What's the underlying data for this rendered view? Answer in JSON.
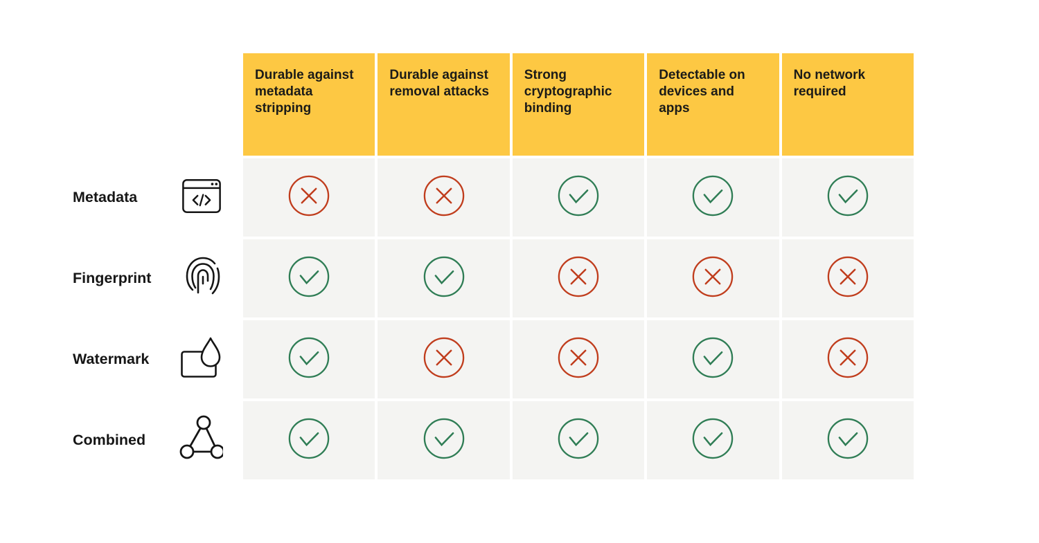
{
  "table": {
    "columns": [
      {
        "label": "Durable against metadata stripping"
      },
      {
        "label": "Durable against removal attacks"
      },
      {
        "label": "Strong cryptographic binding"
      },
      {
        "label": "Detectable on devices and apps"
      },
      {
        "label": "No network required"
      }
    ],
    "rows": [
      {
        "label": "Metadata",
        "icon": "browser-code-icon",
        "values": [
          "no",
          "no",
          "yes",
          "yes",
          "yes"
        ]
      },
      {
        "label": "Fingerprint",
        "icon": "fingerprint-icon",
        "values": [
          "yes",
          "yes",
          "no",
          "no",
          "no"
        ]
      },
      {
        "label": "Watermark",
        "icon": "watermark-droplet-icon",
        "values": [
          "yes",
          "no",
          "no",
          "yes",
          "no"
        ]
      },
      {
        "label": "Combined",
        "icon": "network-triangle-icon",
        "values": [
          "yes",
          "yes",
          "yes",
          "yes",
          "yes"
        ]
      }
    ]
  },
  "marks": {
    "yes": {
      "icon": "check-icon",
      "color": "#2F7D55"
    },
    "no": {
      "icon": "cross-icon",
      "color": "#C03D1D"
    }
  },
  "colors": {
    "header_bg": "#FDC843",
    "cell_bg": "#F4F4F2",
    "check_green": "#2F7D55",
    "cross_red": "#C03D1D",
    "icon_stroke": "#151515",
    "page_bg": "#FFFFFF"
  }
}
